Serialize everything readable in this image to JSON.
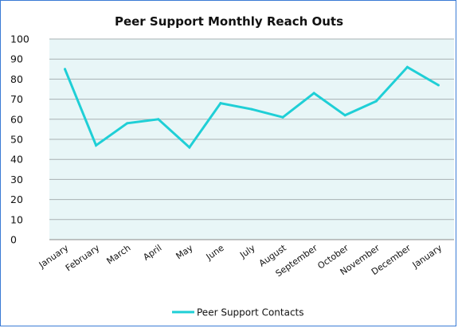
{
  "chart_data": {
    "type": "line",
    "title": "Peer Support Monthly Reach Outs",
    "categories": [
      "January",
      "February",
      "March",
      "April",
      "May",
      "June",
      "July",
      "August",
      "September",
      "October",
      "November",
      "December",
      "January"
    ],
    "series": [
      {
        "name": "Peer Support Contacts",
        "values": [
          85,
          47,
          58,
          60,
          46,
          68,
          65,
          61,
          73,
          62,
          69,
          86,
          77
        ],
        "color": "#1fcfd6"
      }
    ],
    "ylim": [
      0,
      100
    ],
    "yticks": [
      0,
      10,
      20,
      30,
      40,
      50,
      60,
      70,
      80,
      90,
      100
    ],
    "grid": true,
    "plot_background": "#e8f6f7",
    "legend": "bottom"
  }
}
